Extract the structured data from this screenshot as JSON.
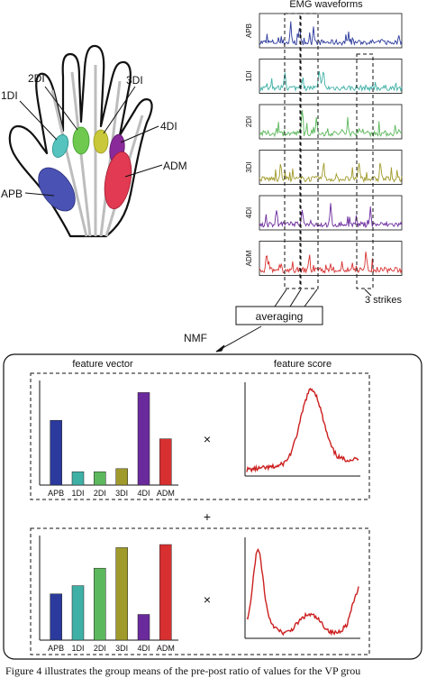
{
  "hand": {
    "labels": [
      "1DI",
      "2DI",
      "3DI",
      "4DI",
      "ADM",
      "APB"
    ]
  },
  "emg": {
    "title": "EMG waveforms",
    "channels": [
      {
        "name": "APB",
        "color": "#2b3a9c"
      },
      {
        "name": "1DI",
        "color": "#3fb0a6"
      },
      {
        "name": "2DI",
        "color": "#5cb85c"
      },
      {
        "name": "3DI",
        "color": "#a09a2a"
      },
      {
        "name": "4DI",
        "color": "#6a2a9c"
      },
      {
        "name": "ADM",
        "color": "#d83030"
      }
    ],
    "strikes_label": "3 strikes"
  },
  "process": {
    "averaging_label": "averaging",
    "nmf_label": "NMF",
    "plus_symbol": "+",
    "times_symbol": "×"
  },
  "results": {
    "feature_vector_title": "feature vector",
    "feature_score_title": "feature score"
  },
  "chart_data": [
    {
      "type": "bar",
      "title": "feature vector",
      "categories": [
        "APB",
        "1DI",
        "2DI",
        "3DI",
        "4DI",
        "ADM"
      ],
      "values": [
        0.63,
        0.13,
        0.13,
        0.16,
        0.9,
        0.45
      ],
      "colors": [
        "#2b3a9c",
        "#3fb0a6",
        "#5cb85c",
        "#a09a2a",
        "#6a2a9c",
        "#d83030"
      ],
      "ylim": [
        0,
        1
      ]
    },
    {
      "type": "bar",
      "categories": [
        "APB",
        "1DI",
        "2DI",
        "3DI",
        "4DI",
        "ADM"
      ],
      "values": [
        0.45,
        0.53,
        0.7,
        0.9,
        0.25,
        0.93
      ],
      "colors": [
        "#2b3a9c",
        "#3fb0a6",
        "#5cb85c",
        "#a09a2a",
        "#6a2a9c",
        "#d83030"
      ],
      "ylim": [
        0,
        1
      ]
    }
  ],
  "caption": "Figure 4 illustrates the group means of the pre-post ratio of    values for the VP grou"
}
